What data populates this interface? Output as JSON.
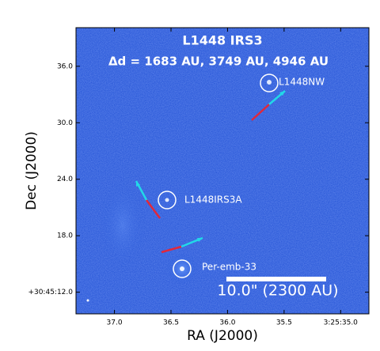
{
  "chart_data": {
    "type": "image",
    "title": "L1448 IRS3",
    "subtitle": "Δd = 1683 AU, 3749 AU, 4946 AU",
    "x_label": "RA (J2000)",
    "y_label": "Dec (J2000)",
    "xlim": [
      37.34,
      34.75
    ],
    "xticks": [
      {
        "value": 37.0,
        "label": "37.0"
      },
      {
        "value": 36.5,
        "label": "36.5"
      },
      {
        "value": 36.0,
        "label": "36.0"
      },
      {
        "value": 35.5,
        "label": "35.5"
      },
      {
        "value": 35.0,
        "label": "3:25:35.0"
      }
    ],
    "ylim": [
      9.7,
      40.1
    ],
    "yticks": [
      {
        "value": 12.0,
        "label": "+30:45:12.0"
      },
      {
        "value": 18.0,
        "label": "18.0"
      },
      {
        "value": 24.0,
        "label": "24.0"
      },
      {
        "value": 30.0,
        "label": "30.0"
      },
      {
        "value": 36.0,
        "label": "36.0"
      }
    ],
    "annotations": [
      "L1448NW",
      "L1448IRS3A",
      "Per-emb-33"
    ],
    "scale_bar_label": "10.0\" (2300 AU)"
  }
}
